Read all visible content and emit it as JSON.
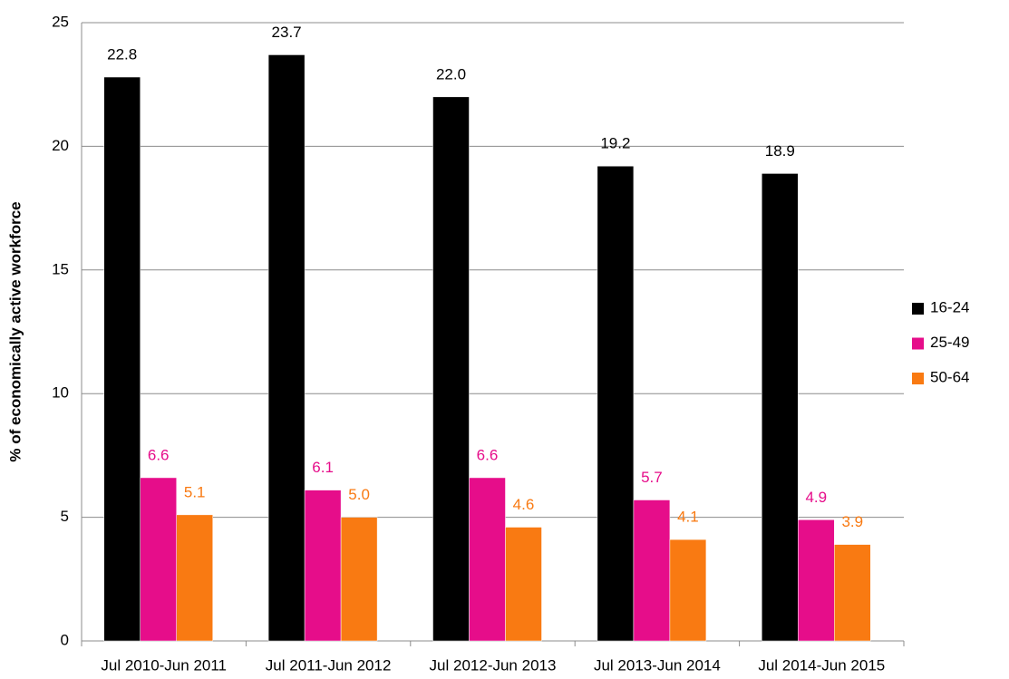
{
  "chart_data": {
    "type": "bar",
    "y_label": "% of economically active workforce",
    "categories": [
      "Jul 2010-Jun 2011",
      "Jul 2011-Jun 2012",
      "Jul 2012-Jun 2013",
      "Jul 2013-Jun 2014",
      "Jul 2014-Jun 2015"
    ],
    "series": [
      {
        "name": "16-24",
        "color": "#000000",
        "label_color": "#000000",
        "values": [
          22.8,
          23.7,
          22,
          19.2,
          18.9
        ],
        "value_labels": [
          "22.8",
          "23.7",
          "22.0",
          "19.2",
          "18.9"
        ]
      },
      {
        "name": "25-49",
        "color": "#e60d8a",
        "label_color": "#e60d8a",
        "values": [
          6.6,
          6.1,
          6.6,
          5.7,
          4.9
        ],
        "value_labels": [
          "6.6",
          "6.1",
          "6.6",
          "5.7",
          "4.9"
        ]
      },
      {
        "name": "50-64",
        "color": "#f97a12",
        "label_color": "#f97a12",
        "values": [
          5.1,
          5,
          4.6,
          4.1,
          3.9
        ],
        "value_labels": [
          "5.1",
          "5.0",
          "4.6",
          "4.1",
          "3.9"
        ]
      }
    ],
    "ylim": [
      0,
      25
    ],
    "yticks": [
      0,
      5,
      10,
      15,
      20,
      25
    ],
    "grid": true,
    "legend": "right"
  }
}
